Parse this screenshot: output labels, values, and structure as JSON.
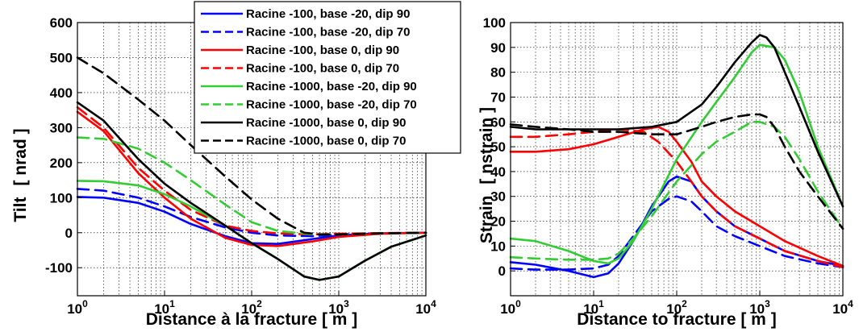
{
  "chart_data": [
    {
      "type": "line",
      "title": "",
      "xlabel": "Distance à la fracture [ m ]",
      "ylabel_parts": [
        "Tilt",
        "[ nrad ]"
      ],
      "xscale": "log",
      "xlim": [
        1,
        10000
      ],
      "ylim": [
        -180,
        600
      ],
      "grid": true,
      "xticks": [
        1,
        10,
        100,
        1000,
        10000
      ],
      "yticks": [
        -100,
        0,
        100,
        200,
        300,
        400,
        500,
        600
      ],
      "ytick_labels": [
        "-100",
        "0",
        "100",
        "200",
        "300",
        "400",
        "500",
        "600"
      ],
      "legend": {
        "placement": "top-center",
        "entries": [
          {
            "label": "Racine -100, base -20, dip 90",
            "color": "#0000ff",
            "style": "solid"
          },
          {
            "label": "Racine -100, base -20, dip 70",
            "color": "#0000ff",
            "style": "dashed"
          },
          {
            "label": "Racine -100, base 0, dip 90",
            "color": "#ff0000",
            "style": "solid"
          },
          {
            "label": "Racine -100, base 0, dip 70",
            "color": "#ff0000",
            "style": "dashed"
          },
          {
            "label": "Racine -1000, base -20, dip 90",
            "color": "#33cc33",
            "style": "solid"
          },
          {
            "label": "Racine -1000, base -20, dip 70",
            "color": "#33cc33",
            "style": "dashed"
          },
          {
            "label": "Racine -1000, base 0, dip 90",
            "color": "#000000",
            "style": "solid"
          },
          {
            "label": "Racine -1000, base 0, dip 70",
            "color": "#000000",
            "style": "dashed"
          }
        ]
      },
      "series": [
        {
          "color": "#0000ff",
          "style": "solid",
          "x": [
            1,
            2,
            5,
            10,
            20,
            50,
            100,
            200,
            500,
            1000,
            3000,
            10000
          ],
          "y": [
            102,
            100,
            85,
            60,
            25,
            -10,
            -30,
            -32,
            -18,
            -8,
            -2,
            0
          ]
        },
        {
          "color": "#0000ff",
          "style": "dashed",
          "x": [
            1,
            2,
            5,
            10,
            20,
            50,
            100,
            200,
            500,
            1000,
            3000,
            10000
          ],
          "y": [
            125,
            120,
            100,
            75,
            45,
            15,
            0,
            -8,
            -10,
            -5,
            -2,
            0
          ]
        },
        {
          "color": "#ff0000",
          "style": "solid",
          "x": [
            1,
            2,
            5,
            10,
            20,
            50,
            100,
            200,
            500,
            1000,
            3000,
            10000
          ],
          "y": [
            345,
            290,
            170,
            100,
            40,
            -15,
            -35,
            -38,
            -25,
            -12,
            -3,
            0
          ]
        },
        {
          "color": "#ff0000",
          "style": "dashed",
          "x": [
            1,
            2,
            5,
            10,
            20,
            50,
            100,
            200,
            500,
            1000,
            3000,
            10000
          ],
          "y": [
            358,
            300,
            185,
            120,
            65,
            20,
            5,
            -2,
            -5,
            -3,
            -1,
            0
          ]
        },
        {
          "color": "#33cc33",
          "style": "solid",
          "x": [
            1,
            2,
            5,
            10,
            20,
            50,
            100,
            200,
            400,
            600,
            1000,
            2000,
            4000,
            10000
          ],
          "y": [
            148,
            147,
            135,
            110,
            75,
            20,
            -30,
            -75,
            -125,
            -135,
            -125,
            -80,
            -40,
            -8
          ]
        },
        {
          "color": "#33cc33",
          "style": "dashed",
          "x": [
            1,
            2,
            5,
            10,
            20,
            50,
            100,
            200,
            500,
            1000,
            3000,
            10000
          ],
          "y": [
            272,
            268,
            240,
            200,
            150,
            80,
            30,
            5,
            -5,
            -5,
            -2,
            0
          ]
        },
        {
          "color": "#000000",
          "style": "solid",
          "x": [
            1,
            2,
            5,
            10,
            20,
            50,
            100,
            200,
            400,
            600,
            1000,
            2000,
            4000,
            10000
          ],
          "y": [
            372,
            320,
            210,
            140,
            85,
            20,
            -30,
            -75,
            -125,
            -135,
            -125,
            -80,
            -40,
            -8
          ]
        },
        {
          "color": "#000000",
          "style": "dashed",
          "x": [
            1,
            2,
            5,
            10,
            20,
            50,
            100,
            200,
            400,
            600,
            1000,
            3000,
            10000
          ],
          "y": [
            500,
            455,
            380,
            320,
            250,
            160,
            95,
            40,
            0,
            -5,
            -5,
            -2,
            0
          ]
        }
      ]
    },
    {
      "type": "line",
      "title": "",
      "xlabel": "Distance to fracture [ m ]",
      "ylabel_parts": [
        "Strain",
        "[ nstrain ]"
      ],
      "xscale": "log",
      "xlim": [
        1,
        10000
      ],
      "ylim": [
        -10,
        100
      ],
      "grid": true,
      "xticks": [
        1,
        10,
        100,
        1000,
        10000
      ],
      "yticks": [
        0,
        10,
        20,
        30,
        40,
        50,
        60,
        70,
        80,
        90,
        100
      ],
      "ytick_labels": [
        "0",
        "10",
        "20",
        "30",
        "40",
        "50",
        "60",
        "70",
        "80",
        "90",
        "100"
      ],
      "series": [
        {
          "color": "#0000ff",
          "style": "solid",
          "x": [
            1,
            2,
            5,
            10,
            15,
            20,
            30,
            50,
            80,
            100,
            150,
            200,
            300,
            500,
            1000,
            2000,
            5000,
            10000
          ],
          "y": [
            3.5,
            2.5,
            0,
            -2.5,
            -1,
            3,
            12,
            26,
            36,
            38,
            36,
            30,
            24,
            18,
            13,
            8,
            4,
            2
          ]
        },
        {
          "color": "#0000ff",
          "style": "dashed",
          "x": [
            1,
            2,
            5,
            10,
            15,
            20,
            30,
            50,
            80,
            100,
            150,
            200,
            300,
            500,
            1000,
            2000,
            5000,
            10000
          ],
          "y": [
            1,
            0.5,
            0.5,
            1,
            2.5,
            6,
            14,
            24,
            29,
            30,
            28,
            24,
            18,
            14,
            10,
            6,
            3,
            1.5
          ]
        },
        {
          "color": "#ff0000",
          "style": "solid",
          "x": [
            1,
            2,
            5,
            10,
            20,
            40,
            60,
            80,
            100,
            150,
            200,
            300,
            500,
            1000,
            2000,
            5000,
            10000
          ],
          "y": [
            48,
            48,
            49,
            51,
            54,
            57,
            58,
            56,
            52,
            44,
            36,
            30,
            24,
            18,
            12,
            6,
            2
          ]
        },
        {
          "color": "#ff0000",
          "style": "dashed",
          "x": [
            1,
            2,
            5,
            10,
            20,
            40,
            60,
            100,
            150,
            200,
            300,
            500,
            1000,
            2000,
            5000,
            10000
          ],
          "y": [
            54,
            54,
            55,
            56,
            57,
            56,
            52,
            44,
            36,
            30,
            24,
            18,
            13,
            8,
            4,
            1.5
          ]
        },
        {
          "color": "#33cc33",
          "style": "solid",
          "x": [
            1,
            2,
            5,
            10,
            15,
            20,
            30,
            50,
            100,
            200,
            300,
            500,
            800,
            1000,
            1500,
            2000,
            3000,
            5000,
            10000
          ],
          "y": [
            13,
            12,
            8,
            4,
            3,
            5,
            12,
            25,
            45,
            60,
            68,
            78,
            88,
            91,
            90,
            85,
            72,
            50,
            26
          ]
        },
        {
          "color": "#33cc33",
          "style": "dashed",
          "x": [
            1,
            2,
            5,
            10,
            15,
            20,
            30,
            50,
            100,
            200,
            300,
            500,
            800,
            1000,
            1500,
            2000,
            3000,
            5000,
            10000
          ],
          "y": [
            5.5,
            5,
            4.5,
            4.5,
            5,
            7,
            13,
            22,
            36,
            47,
            52,
            56,
            60,
            60,
            58,
            54,
            45,
            32,
            17
          ]
        },
        {
          "color": "#000000",
          "style": "solid",
          "x": [
            1,
            2,
            5,
            10,
            20,
            50,
            100,
            200,
            300,
            500,
            800,
            1000,
            1200,
            1500,
            2000,
            3000,
            5000,
            10000
          ],
          "y": [
            58,
            57,
            57,
            57,
            57,
            58,
            60,
            67,
            74,
            84,
            92,
            95,
            94,
            90,
            80,
            66,
            48,
            26
          ]
        },
        {
          "color": "#000000",
          "style": "dashed",
          "x": [
            1,
            2,
            5,
            10,
            20,
            50,
            100,
            200,
            300,
            500,
            800,
            1000,
            1200,
            1500,
            2000,
            3000,
            5000,
            10000
          ],
          "y": [
            59,
            58,
            57,
            56,
            56,
            55,
            55,
            58,
            60,
            62,
            63,
            63,
            62,
            58,
            50,
            40,
            30,
            17
          ]
        }
      ]
    }
  ]
}
